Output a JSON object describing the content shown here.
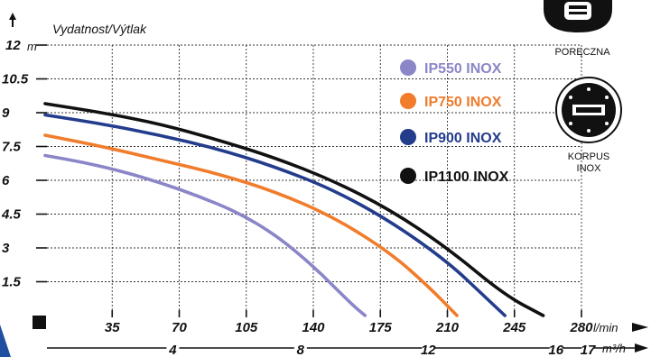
{
  "chart_data": {
    "type": "line",
    "title": "Vydatnost/Výtlak",
    "xlabel_unit": "l/min",
    "x2label_unit": "m³/h",
    "ylabel_unit": "m",
    "xlim": [
      0,
      280
    ],
    "ylim": [
      0,
      12
    ],
    "grid": true,
    "legend_position": "right",
    "y_ticks": [
      "12",
      "10.5",
      "9",
      "7.5",
      "6",
      "4.5",
      "3",
      "1.5"
    ],
    "y_tick_values": [
      12,
      10.5,
      9,
      7.5,
      6,
      4.5,
      3,
      1.5
    ],
    "x_ticks": [
      "35",
      "70",
      "105",
      "140",
      "175",
      "210",
      "245",
      "280"
    ],
    "x_tick_values": [
      35,
      70,
      105,
      140,
      175,
      210,
      245,
      280
    ],
    "x2_ticks": [
      "4",
      "8",
      "12",
      "16",
      "17"
    ],
    "x2_tick_values": [
      66.67,
      133.33,
      200,
      266.67,
      283.33
    ],
    "series": [
      {
        "name": "IP550 INOX",
        "color": "#8a86c8",
        "x": [
          0,
          20,
          40,
          60,
          80,
          100,
          120,
          140,
          160,
          167
        ],
        "y": [
          7.1,
          6.8,
          6.4,
          5.9,
          5.3,
          4.6,
          3.6,
          2.2,
          0.5,
          0
        ]
      },
      {
        "name": "IP750 INOX",
        "color": "#f07c2c",
        "x": [
          0,
          30,
          60,
          90,
          120,
          150,
          180,
          200,
          215
        ],
        "y": [
          8.0,
          7.5,
          6.9,
          6.3,
          5.5,
          4.4,
          2.8,
          1.3,
          0
        ]
      },
      {
        "name": "IP900 INOX",
        "color": "#233c8c",
        "x": [
          0,
          30,
          60,
          90,
          120,
          150,
          180,
          210,
          230,
          240
        ],
        "y": [
          8.9,
          8.5,
          8.0,
          7.4,
          6.6,
          5.6,
          4.2,
          2.4,
          0.8,
          0
        ]
      },
      {
        "name": "IP1100 INOX",
        "color": "#111111",
        "x": [
          0,
          30,
          60,
          90,
          120,
          150,
          180,
          210,
          240,
          260
        ],
        "y": [
          9.4,
          9.0,
          8.5,
          7.8,
          7.0,
          6.0,
          4.7,
          3.0,
          0.9,
          0
        ]
      }
    ]
  },
  "legend": {
    "items": [
      {
        "label": "IP550 INOX",
        "color": "#8a86c8"
      },
      {
        "label": "IP750 INOX",
        "color": "#f07c2c"
      },
      {
        "label": "IP900 INOX",
        "color": "#233c8c"
      },
      {
        "label": "IP1100 INOX",
        "color": "#111111"
      }
    ]
  },
  "side_icons": {
    "handle_label": "PORĘCZNA",
    "body_label_1": "KORPUS",
    "body_label_2": "INOX",
    "handle_icon": "hand-fist-icon",
    "body_icon": "pump-body-icon"
  }
}
